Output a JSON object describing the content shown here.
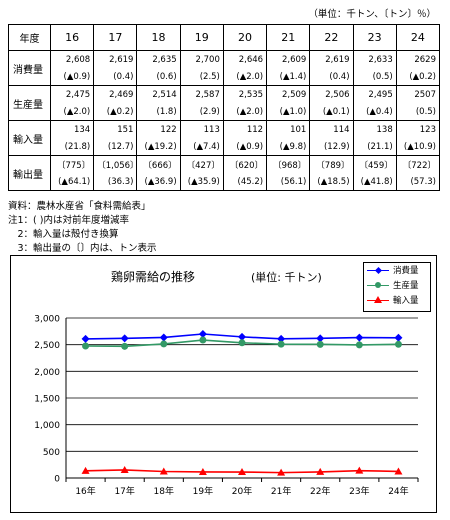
{
  "unit_note": "（単位：千トン、〔トン〕％）",
  "table": {
    "header_label": "年度",
    "years": [
      "16",
      "17",
      "18",
      "19",
      "20",
      "21",
      "22",
      "23",
      "24"
    ],
    "rows": [
      {
        "label": "消費量",
        "values": [
          "2,608",
          "2,619",
          "2,635",
          "2,700",
          "2,646",
          "2,609",
          "2,619",
          "2,633",
          "2629"
        ],
        "sub": [
          "(▲0.9)",
          "(0.4)",
          "(0.6)",
          "(2.5)",
          "(▲2.0)",
          "(▲1.4)",
          "(0.4)",
          "(0.5)",
          "(▲0.2)"
        ]
      },
      {
        "label": "生産量",
        "values": [
          "2,475",
          "2,469",
          "2,514",
          "2,587",
          "2,535",
          "2,509",
          "2,506",
          "2,495",
          "2507"
        ],
        "sub": [
          "(▲2.0)",
          "(▲0.2)",
          "(1.8)",
          "(2.9)",
          "(▲2.0)",
          "(▲1.0)",
          "(▲0.1)",
          "(▲0.4)",
          "(0.5)"
        ]
      },
      {
        "label": "輸入量",
        "values": [
          "134",
          "151",
          "122",
          "113",
          "112",
          "101",
          "114",
          "138",
          "123"
        ],
        "sub": [
          "(21.8)",
          "(12.7)",
          "(▲19.2)",
          "(▲7.4)",
          "(▲0.9)",
          "(▲9.8)",
          "(12.9)",
          "(21.1)",
          "(▲10.9)"
        ]
      },
      {
        "label": "輸出量",
        "values": [
          "〔775〕",
          "〔1,056〕",
          "〔666〕",
          "〔427〕",
          "〔620〕",
          "〔968〕",
          "〔789〕",
          "〔459〕",
          "〔722〕"
        ],
        "sub": [
          "(▲64.1)",
          "(36.3)",
          "(▲36.9)",
          "(▲35.9)",
          "(45.2)",
          "(56.1)",
          "(▲18.5)",
          "(▲41.8)",
          "(57.3)"
        ]
      }
    ]
  },
  "notes": [
    "資料：農林水産省「食料需給表」",
    "注1：(  )内は対前年度増減率",
    "　2：輸入量は殻付き換算",
    "　3：輸出量の〔〕内は、トン表示"
  ],
  "chart_data": {
    "type": "line",
    "title": "鶏卵需給の推移",
    "unit": "(単位: 千トン)",
    "categories": [
      "16年",
      "17年",
      "18年",
      "19年",
      "20年",
      "21年",
      "22年",
      "23年",
      "24年"
    ],
    "ylim": [
      0,
      3000
    ],
    "yticks": [
      "0",
      "500",
      "1,000",
      "1,500",
      "2,000",
      "2,500",
      "3,000"
    ],
    "ytick_values": [
      0,
      500,
      1000,
      1500,
      2000,
      2500,
      3000
    ],
    "grid": true,
    "legend_position": "top-right",
    "series": [
      {
        "name": "消費量",
        "color": "#0000ff",
        "marker": "diamond",
        "values": [
          2608,
          2619,
          2635,
          2700,
          2646,
          2609,
          2619,
          2633,
          2629
        ]
      },
      {
        "name": "生産量",
        "color": "#339966",
        "marker": "circle",
        "values": [
          2475,
          2469,
          2514,
          2587,
          2535,
          2509,
          2506,
          2495,
          2507
        ]
      },
      {
        "name": "輸入量",
        "color": "#ff0000",
        "marker": "triangle",
        "values": [
          134,
          151,
          122,
          113,
          112,
          101,
          114,
          138,
          123
        ]
      }
    ]
  }
}
